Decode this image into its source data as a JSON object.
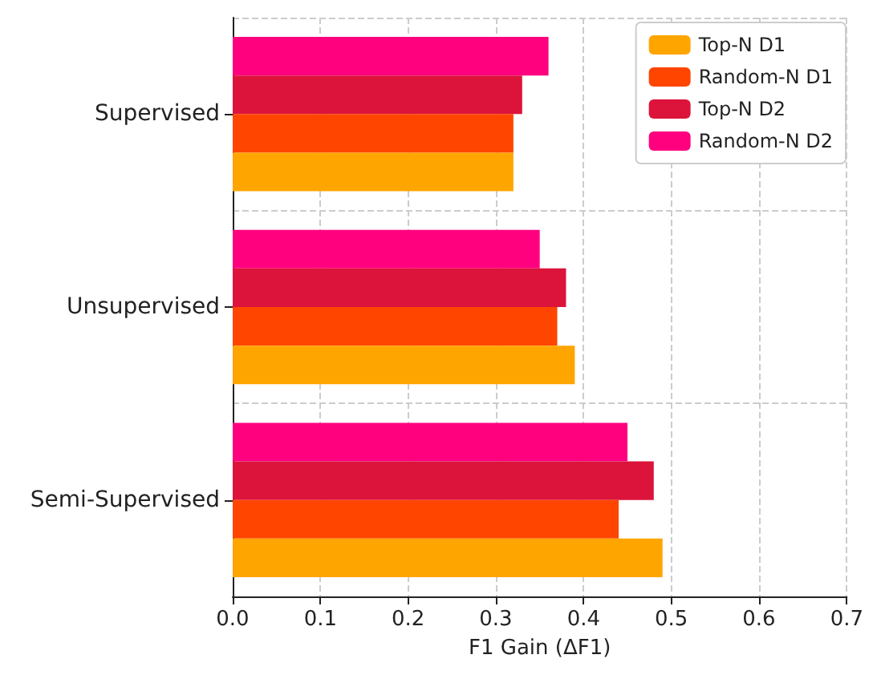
{
  "chart_data": {
    "type": "bar",
    "orientation": "horizontal",
    "xlabel": "F1 Gain (ΔF1)",
    "categories": [
      "Supervised",
      "Unsupervised",
      "Semi-Supervised"
    ],
    "series": [
      {
        "name": "Top-N D1",
        "color": "#ffa500",
        "values": [
          0.32,
          0.39,
          0.49
        ]
      },
      {
        "name": "Random-N D1",
        "color": "#ff4500",
        "values": [
          0.32,
          0.37,
          0.44
        ]
      },
      {
        "name": "Top-N D2",
        "color": "#dc143c",
        "values": [
          0.33,
          0.38,
          0.48
        ]
      },
      {
        "name": "Random-N D2",
        "color": "#ff007f",
        "values": [
          0.36,
          0.35,
          0.45
        ]
      }
    ],
    "xlim": [
      0,
      0.7
    ],
    "xticks": [
      {
        "value": 0,
        "label": "0.0"
      },
      0.1,
      0.2,
      0.3,
      0.4,
      0.5,
      0.6,
      0.7
    ],
    "grid": true,
    "legend": "top right"
  }
}
